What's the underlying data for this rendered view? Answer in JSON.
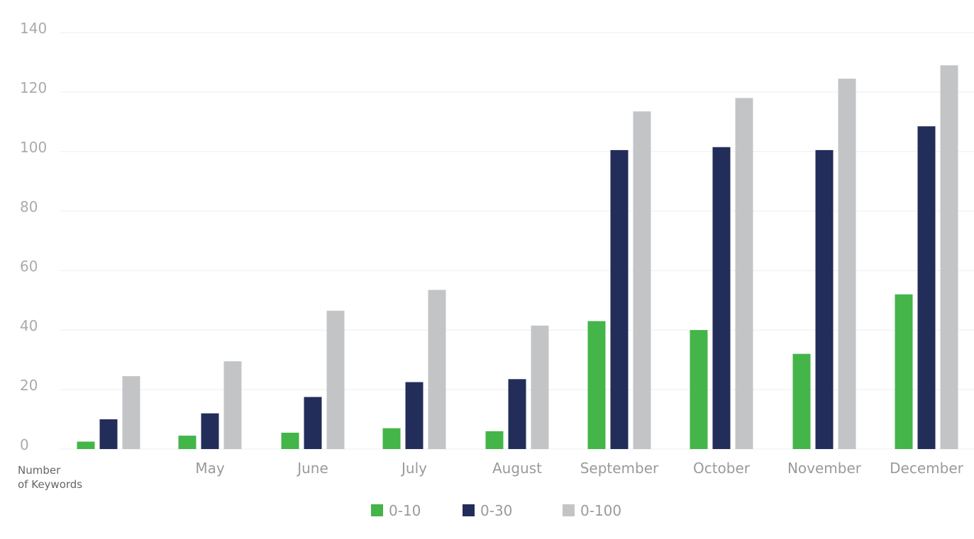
{
  "chart_data": {
    "type": "bar",
    "categories": [
      "",
      "May",
      "June",
      "July",
      "August",
      "September",
      "October",
      "November",
      "December"
    ],
    "series": [
      {
        "name": "0-10",
        "color": "#44b549",
        "values": [
          2.5,
          4.5,
          5.5,
          7,
          6,
          43,
          40,
          32,
          52
        ]
      },
      {
        "name": "0-30",
        "color": "#222d5a",
        "values": [
          10,
          12,
          17.5,
          22.5,
          23.5,
          100.5,
          101.5,
          100.5,
          108.5
        ]
      },
      {
        "name": "0-100",
        "color": "#c3c4c6",
        "values": [
          24.5,
          29.5,
          46.5,
          53.5,
          41.5,
          113.5,
          118,
          124.5,
          129
        ]
      }
    ],
    "ylim": [
      0,
      140
    ],
    "yticks": [
      0,
      20,
      40,
      60,
      80,
      100,
      120,
      140
    ],
    "ylabel_line1": "Number",
    "ylabel_line2": "of Keywords",
    "grid": true,
    "legend_position": "bottom-center"
  }
}
